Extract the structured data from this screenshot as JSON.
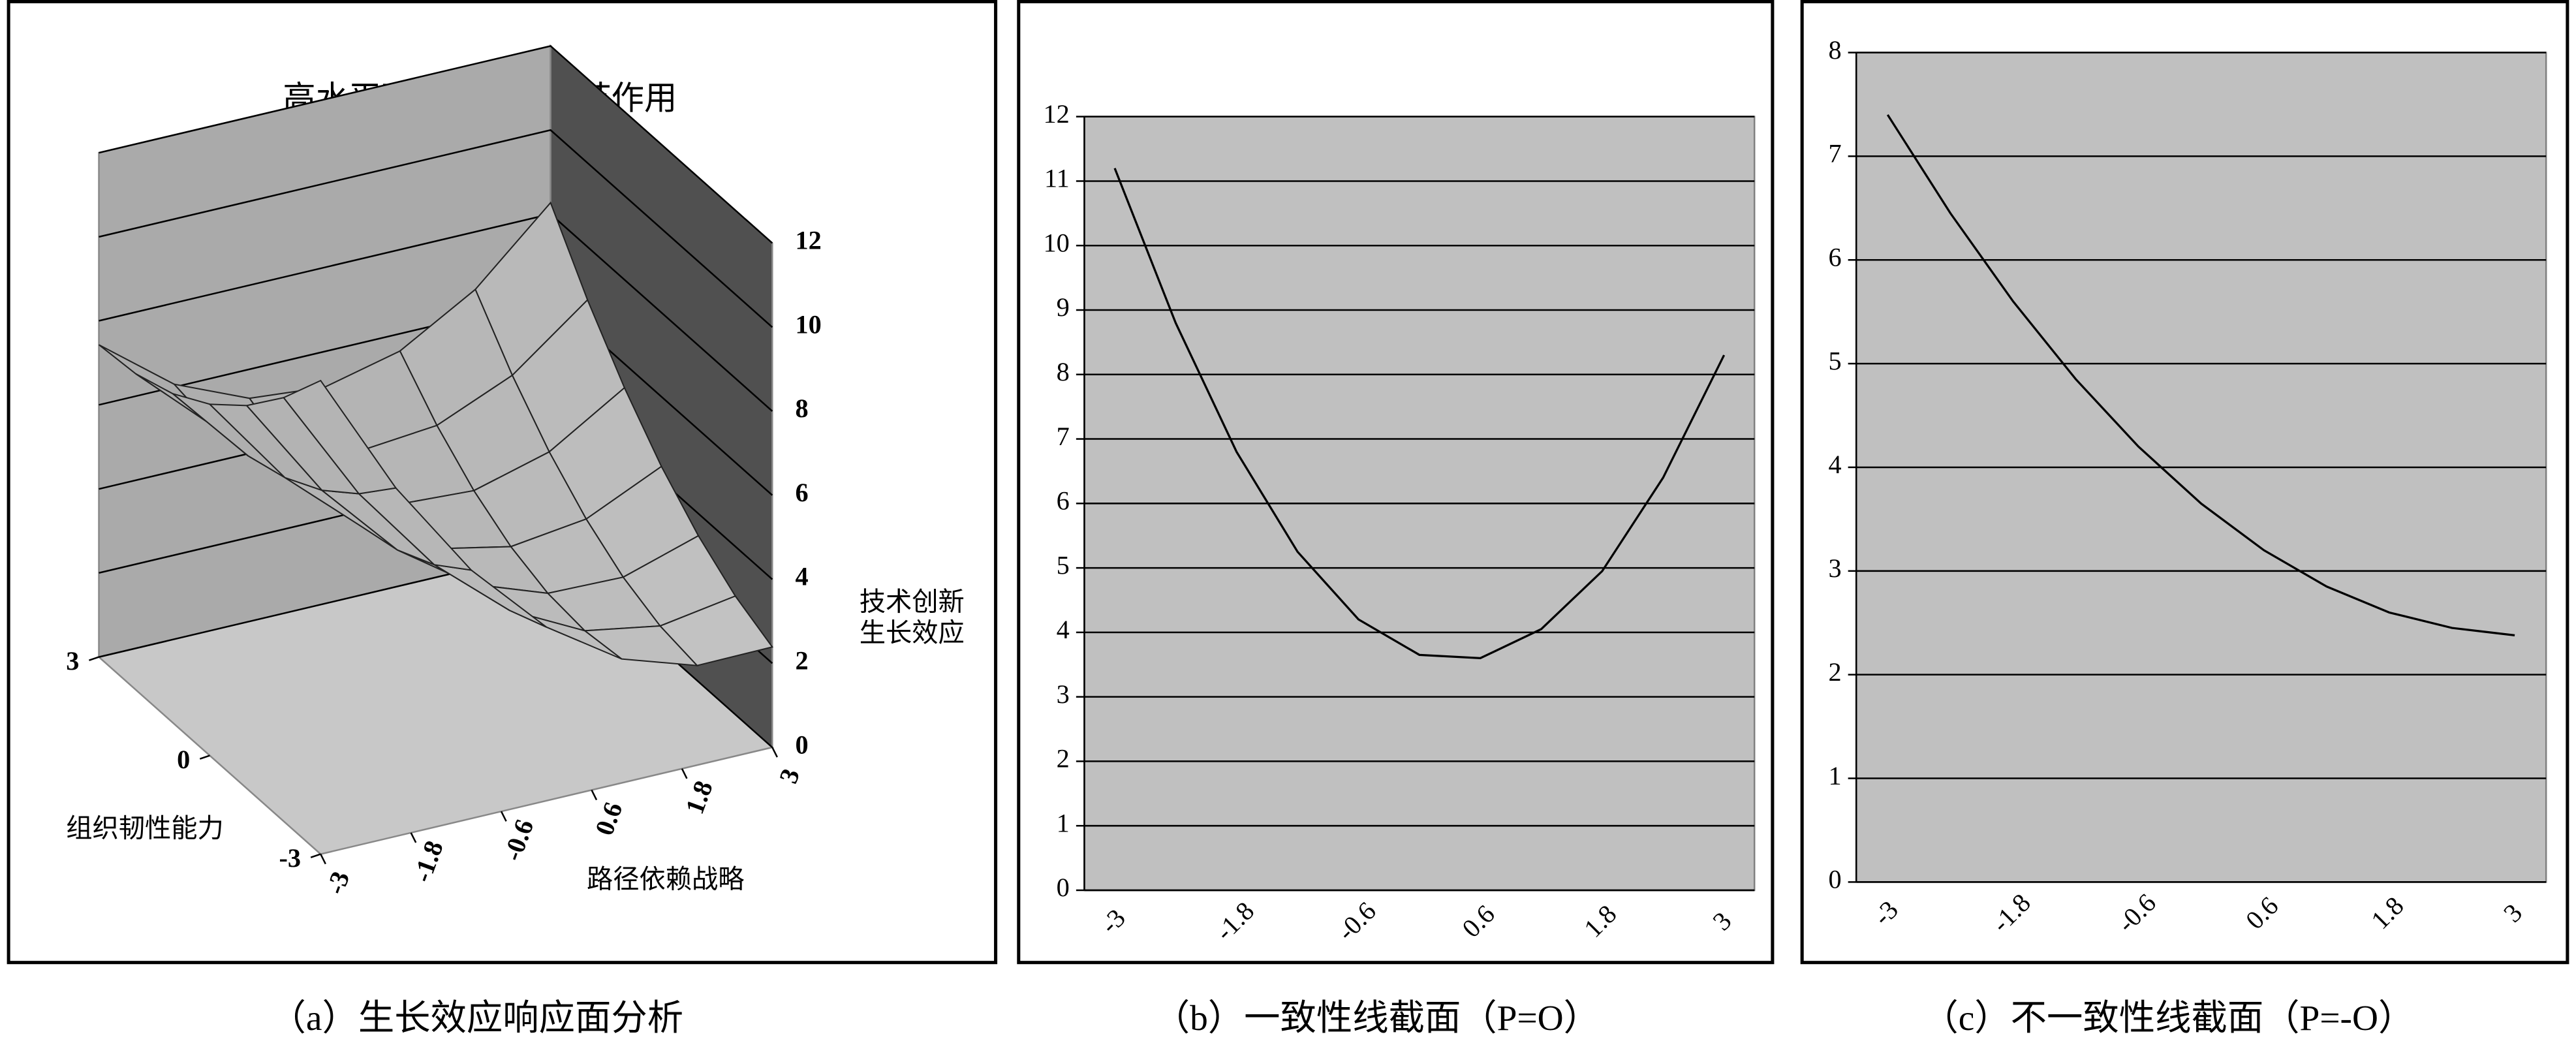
{
  "chart_data": [
    {
      "type": "surface",
      "title": "高水平政策支持的调节作用",
      "x_label": "路径依赖战略",
      "y_label": "组织韧性能力",
      "z_label": [
        "技术创新",
        "生长效应"
      ],
      "caption": "（a）生长效应响应面分析",
      "x": [
        -3,
        -2,
        -1,
        0,
        1,
        2,
        3
      ],
      "y": [
        -3,
        -2,
        -1,
        0,
        1,
        2,
        3
      ],
      "z": [
        [
          11.27,
          8.29,
          5.91,
          4.13,
          2.95,
          2.37,
          2.39
        ],
        [
          10.08,
          7.37,
          5.26,
          3.75,
          2.84,
          2.53,
          2.82
        ],
        [
          9.11,
          6.67,
          4.83,
          3.59,
          2.95,
          2.91,
          3.47
        ],
        [
          8.36,
          6.19,
          4.62,
          3.65,
          3.28,
          3.51,
          4.34
        ],
        [
          7.83,
          5.93,
          4.63,
          3.93,
          3.83,
          4.33,
          5.43
        ],
        [
          7.52,
          5.89,
          4.86,
          4.43,
          4.6,
          5.37,
          6.74
        ],
        [
          7.43,
          6.07,
          5.31,
          5.15,
          5.59,
          6.63,
          8.27
        ]
      ],
      "xlim": [
        -3,
        3
      ],
      "ylim": [
        -3,
        3
      ],
      "zlim": [
        0,
        12
      ],
      "xticks": [
        -3,
        -1.8,
        -0.6,
        0.6,
        1.8,
        3
      ],
      "yticks": [
        -3,
        0,
        3
      ],
      "zticks": [
        0,
        2,
        4,
        6,
        8,
        10,
        12
      ],
      "grid": true
    },
    {
      "type": "line",
      "caption": "（b）一致性线截面（P=O）",
      "categories": [
        "-3",
        null,
        "-1.8",
        null,
        "-0.6",
        null,
        "0.6",
        null,
        "1.8",
        null,
        "3"
      ],
      "values": [
        11.2,
        8.8,
        6.8,
        5.25,
        4.2,
        3.65,
        3.6,
        4.05,
        4.95,
        6.4,
        8.3
      ],
      "color": "#000000",
      "background": "#c0c0c0",
      "ylim": [
        0,
        12
      ],
      "yticks": [
        0,
        1,
        2,
        3,
        4,
        5,
        6,
        7,
        8,
        9,
        10,
        11,
        12
      ],
      "grid": true
    },
    {
      "type": "line",
      "caption": "（c）不一致性线截面（P=-O）",
      "categories": [
        "-3",
        null,
        "-1.8",
        null,
        "-0.6",
        null,
        "0.6",
        null,
        "1.8",
        null,
        "3"
      ],
      "values": [
        7.4,
        6.45,
        5.6,
        4.85,
        4.2,
        3.65,
        3.2,
        2.85,
        2.6,
        2.45,
        2.38
      ],
      "color": "#000000",
      "background": "#c0c0c0",
      "ylim": [
        0,
        8
      ],
      "yticks": [
        0,
        1,
        2,
        3,
        4,
        5,
        6,
        7,
        8
      ],
      "grid": true
    }
  ]
}
